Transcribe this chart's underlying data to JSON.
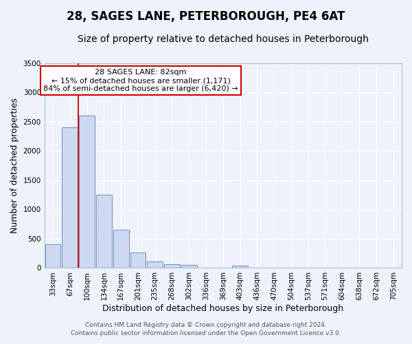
{
  "title": "28, SAGES LANE, PETERBOROUGH, PE4 6AT",
  "subtitle": "Size of property relative to detached houses in Peterborough",
  "xlabel": "Distribution of detached houses by size in Peterborough",
  "ylabel": "Number of detached properties",
  "bar_labels": [
    "33sqm",
    "67sqm",
    "100sqm",
    "134sqm",
    "167sqm",
    "201sqm",
    "235sqm",
    "268sqm",
    "302sqm",
    "336sqm",
    "369sqm",
    "403sqm",
    "436sqm",
    "470sqm",
    "504sqm",
    "537sqm",
    "571sqm",
    "604sqm",
    "638sqm",
    "672sqm",
    "705sqm"
  ],
  "bar_values": [
    400,
    2400,
    2600,
    1250,
    650,
    260,
    115,
    60,
    50,
    0,
    0,
    40,
    0,
    0,
    0,
    0,
    0,
    0,
    0,
    0,
    0
  ],
  "bar_color": "#ccd9f0",
  "bar_edge_color": "#7090c0",
  "ylim": [
    0,
    3500
  ],
  "yticks": [
    0,
    500,
    1000,
    1500,
    2000,
    2500,
    3000,
    3500
  ],
  "red_line_x": 1.5,
  "annotation_title": "28 SAGES LANE: 82sqm",
  "annotation_line1": "← 15% of detached houses are smaller (1,171)",
  "annotation_line2": "84% of semi-detached houses are larger (6,420) →",
  "annotation_box_color": "#ffffff",
  "annotation_box_edge": "#cc0000",
  "footer1": "Contains HM Land Registry data © Crown copyright and database right 2024.",
  "footer2": "Contains public sector information licensed under the Open Government Licence v3.0.",
  "background_color": "#eef2fb",
  "grid_color": "#ffffff",
  "title_fontsize": 12,
  "subtitle_fontsize": 10,
  "ylabel_fontsize": 9,
  "xlabel_fontsize": 9,
  "tick_fontsize": 7.5,
  "annotation_fontsize": 8,
  "footer_fontsize": 6.5
}
